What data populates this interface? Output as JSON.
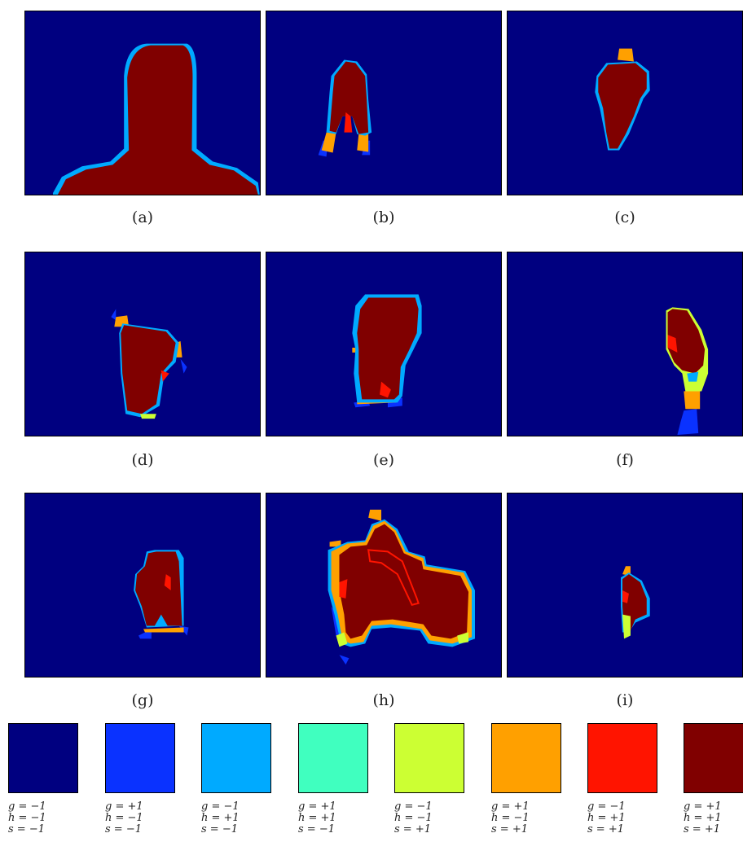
{
  "captions": [
    "(a)",
    "(b)",
    "(c)",
    "(d)",
    "(e)",
    "(f)",
    "(g)",
    "(h)",
    "(i)"
  ],
  "colors": {
    "c0": "#000080",
    "c1": "#0a32ff",
    "c2": "#00aaff",
    "c3": "#40ffbf",
    "c4": "#ccff33",
    "c5": "#ffa000",
    "c6": "#ff1400",
    "c7": "#800000"
  },
  "legend": [
    {
      "color": "#000080",
      "g": "g = −1",
      "h": "h = −1",
      "s": "s = −1"
    },
    {
      "color": "#0a32ff",
      "g": "g = +1",
      "h": "h = −1",
      "s": "s = −1"
    },
    {
      "color": "#00aaff",
      "g": "g = −1",
      "h": "h = +1",
      "s": "s = −1"
    },
    {
      "color": "#40ffbf",
      "g": "g = +1",
      "h": "h = +1",
      "s": "s = −1"
    },
    {
      "color": "#ccff33",
      "g": "g = −1",
      "h": "h = −1",
      "s": "s = +1"
    },
    {
      "color": "#ffa000",
      "g": "g = +1",
      "h": "h = −1",
      "s": "s = +1"
    },
    {
      "color": "#ff1400",
      "g": "g = −1",
      "h": "h = +1",
      "s": "s = +1"
    },
    {
      "color": "#800000",
      "g": "g = +1",
      "h": "h = +1",
      "s": "s = +1"
    }
  ]
}
